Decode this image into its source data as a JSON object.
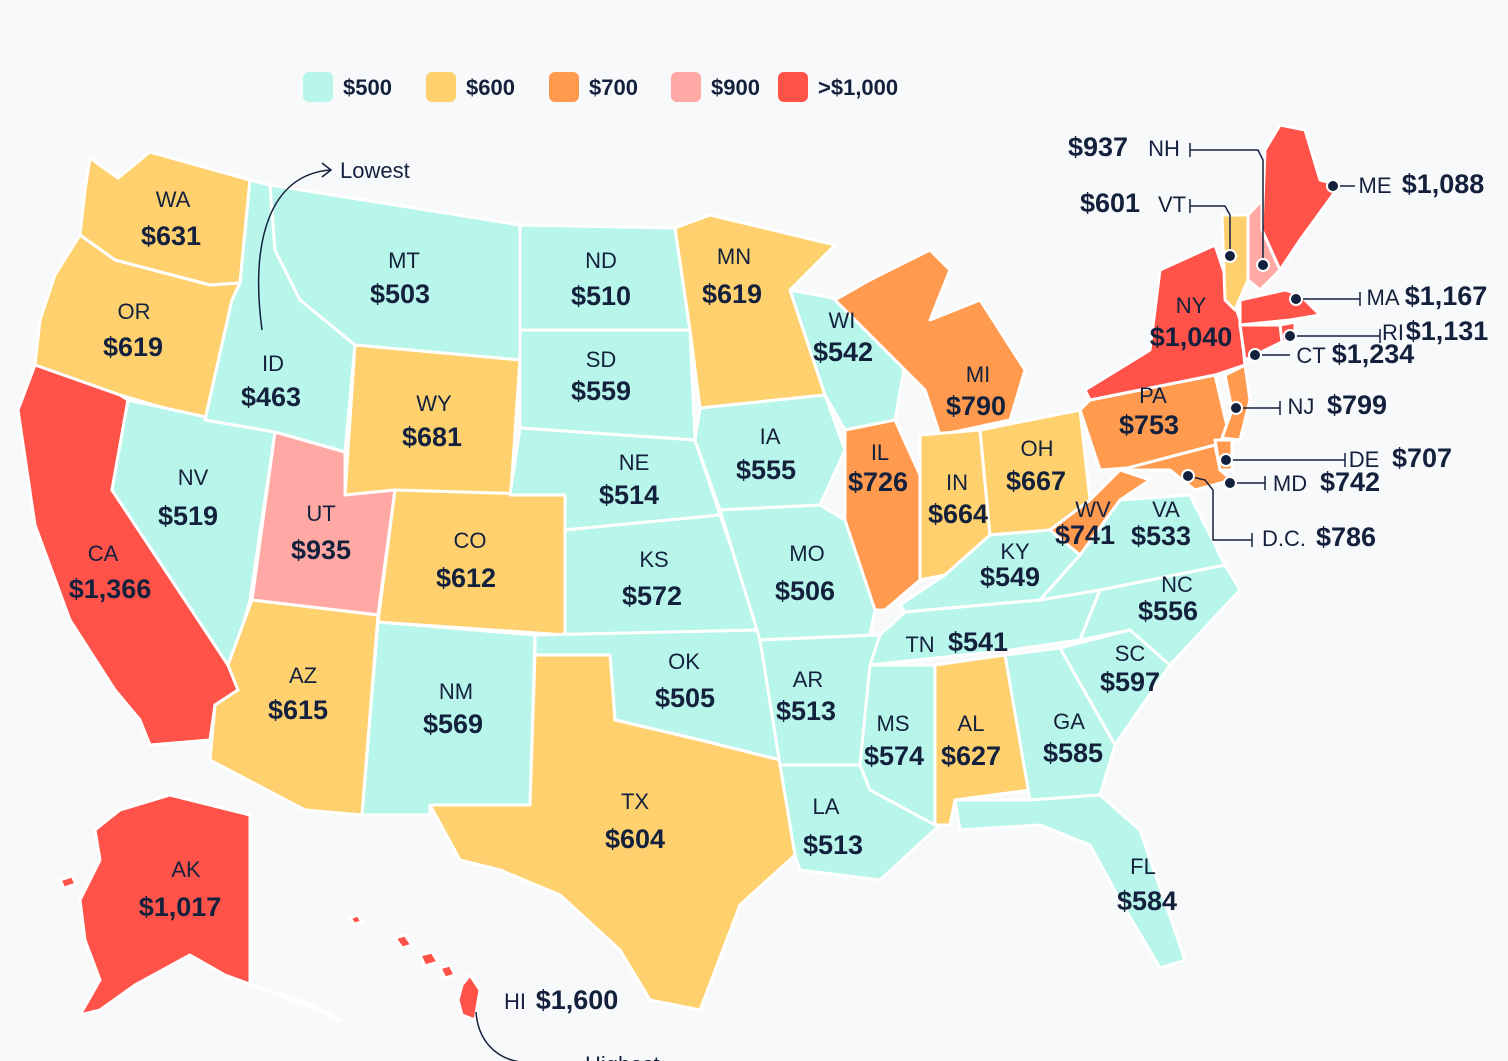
{
  "legend": [
    {
      "label": "$500",
      "color": "#b8f5ea"
    },
    {
      "label": "$600",
      "color": "#ffd06e"
    },
    {
      "label": "$700",
      "color": "#ff9a4f"
    },
    {
      "label": "$900",
      "color": "#ffa8a4"
    },
    {
      "label": ">$1,000",
      "color": "#ff5249"
    }
  ],
  "annotations": {
    "lowest": "Lowest",
    "highest": "Highest"
  },
  "states": [
    {
      "abbr": "WA",
      "value": "$631"
    },
    {
      "abbr": "OR",
      "value": "$619"
    },
    {
      "abbr": "CA",
      "value": "$1,366"
    },
    {
      "abbr": "NV",
      "value": "$519"
    },
    {
      "abbr": "ID",
      "value": "$463"
    },
    {
      "abbr": "MT",
      "value": "$503"
    },
    {
      "abbr": "WY",
      "value": "$681"
    },
    {
      "abbr": "UT",
      "value": "$935"
    },
    {
      "abbr": "AZ",
      "value": "$615"
    },
    {
      "abbr": "CO",
      "value": "$612"
    },
    {
      "abbr": "NM",
      "value": "$569"
    },
    {
      "abbr": "ND",
      "value": "$510"
    },
    {
      "abbr": "SD",
      "value": "$559"
    },
    {
      "abbr": "NE",
      "value": "$514"
    },
    {
      "abbr": "KS",
      "value": "$572"
    },
    {
      "abbr": "OK",
      "value": "$505"
    },
    {
      "abbr": "TX",
      "value": "$604"
    },
    {
      "abbr": "MN",
      "value": "$619"
    },
    {
      "abbr": "IA",
      "value": "$555"
    },
    {
      "abbr": "MO",
      "value": "$506"
    },
    {
      "abbr": "AR",
      "value": "$513"
    },
    {
      "abbr": "LA",
      "value": "$513"
    },
    {
      "abbr": "WI",
      "value": "$542"
    },
    {
      "abbr": "IL",
      "value": "$726"
    },
    {
      "abbr": "MI",
      "value": "$790"
    },
    {
      "abbr": "IN",
      "value": "$664"
    },
    {
      "abbr": "OH",
      "value": "$667"
    },
    {
      "abbr": "KY",
      "value": "$549"
    },
    {
      "abbr": "TN",
      "value": "$541"
    },
    {
      "abbr": "MS",
      "value": "$574"
    },
    {
      "abbr": "AL",
      "value": "$627"
    },
    {
      "abbr": "GA",
      "value": "$585"
    },
    {
      "abbr": "FL",
      "value": "$584"
    },
    {
      "abbr": "SC",
      "value": "$597"
    },
    {
      "abbr": "NC",
      "value": "$556"
    },
    {
      "abbr": "VA",
      "value": "$533"
    },
    {
      "abbr": "WV",
      "value": "$741"
    },
    {
      "abbr": "PA",
      "value": "$753"
    },
    {
      "abbr": "NY",
      "value": "$1,040"
    },
    {
      "abbr": "ME",
      "value": "$1,088"
    },
    {
      "abbr": "NH",
      "value": "$937"
    },
    {
      "abbr": "VT",
      "value": "$601"
    },
    {
      "abbr": "MA",
      "value": "$1,167"
    },
    {
      "abbr": "RI",
      "value": "$1,131"
    },
    {
      "abbr": "CT",
      "value": "$1,234"
    },
    {
      "abbr": "NJ",
      "value": "$799"
    },
    {
      "abbr": "DE",
      "value": "$707"
    },
    {
      "abbr": "MD",
      "value": "$742"
    },
    {
      "abbr": "D.C.",
      "value": "$786"
    },
    {
      "abbr": "AK",
      "value": "$1,017"
    },
    {
      "abbr": "HI",
      "value": "$1,600"
    }
  ]
}
